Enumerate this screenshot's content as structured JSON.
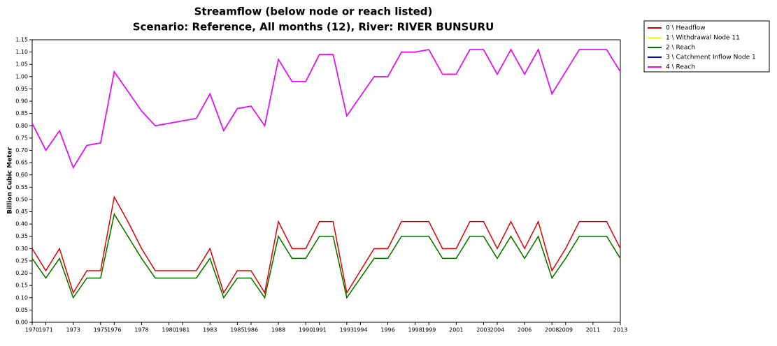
{
  "chart_data": {
    "type": "line",
    "title": "Streamflow (below node or reach listed)",
    "subtitle": "Scenario: Reference,  All months (12),  River: RIVER BUNSURU",
    "y_label": "Billion Cubic Meter",
    "x": [
      1970,
      1971,
      1972,
      1973,
      1974,
      1975,
      1976,
      1977,
      1978,
      1979,
      1980,
      1981,
      1982,
      1983,
      1984,
      1985,
      1986,
      1987,
      1988,
      1989,
      1990,
      1991,
      1992,
      1993,
      1994,
      1995,
      1996,
      1997,
      1998,
      1999,
      2000,
      2001,
      2002,
      2003,
      2004,
      2005,
      2006,
      2007,
      2008,
      2009,
      2010,
      2011,
      2012,
      2013
    ],
    "series": [
      {
        "name": "0 \\ Headflow",
        "color": "#e00000",
        "values": [
          0.3,
          0.21,
          0.3,
          0.12,
          0.21,
          0.21,
          0.51,
          0.41,
          0.3,
          0.21,
          0.21,
          0.21,
          0.21,
          0.3,
          0.12,
          0.21,
          0.21,
          0.12,
          0.41,
          0.3,
          0.3,
          0.41,
          0.41,
          0.12,
          0.21,
          0.3,
          0.3,
          0.41,
          0.41,
          0.41,
          0.3,
          0.3,
          0.41,
          0.41,
          0.3,
          0.41,
          0.3,
          0.41,
          0.21,
          0.3,
          0.41,
          0.41,
          0.41,
          0.3
        ]
      },
      {
        "name": "1 \\ Withdrawal Node 11",
        "color": "#ffff00",
        "values": [
          0.26,
          0.18,
          0.26,
          0.1,
          0.18,
          0.18,
          0.44,
          0.35,
          0.26,
          0.18,
          0.18,
          0.18,
          0.18,
          0.26,
          0.1,
          0.18,
          0.18,
          0.1,
          0.35,
          0.26,
          0.26,
          0.35,
          0.35,
          0.1,
          0.18,
          0.26,
          0.26,
          0.35,
          0.35,
          0.35,
          0.26,
          0.26,
          0.35,
          0.35,
          0.26,
          0.35,
          0.26,
          0.35,
          0.18,
          0.26,
          0.35,
          0.35,
          0.35,
          0.26
        ]
      },
      {
        "name": "2 \\ Reach",
        "color": "#007000",
        "values": [
          0.26,
          0.18,
          0.26,
          0.1,
          0.18,
          0.18,
          0.44,
          0.35,
          0.26,
          0.18,
          0.18,
          0.18,
          0.18,
          0.26,
          0.1,
          0.18,
          0.18,
          0.1,
          0.35,
          0.26,
          0.26,
          0.35,
          0.35,
          0.1,
          0.18,
          0.26,
          0.26,
          0.35,
          0.35,
          0.35,
          0.26,
          0.26,
          0.35,
          0.35,
          0.26,
          0.35,
          0.26,
          0.35,
          0.18,
          0.26,
          0.35,
          0.35,
          0.35,
          0.26
        ]
      },
      {
        "name": "3 \\ Catchment Inflow Node 1",
        "color": "#0000e0",
        "values": [
          0.81,
          0.7,
          0.78,
          0.63,
          0.72,
          0.73,
          1.02,
          0.94,
          0.86,
          0.8,
          0.81,
          0.82,
          0.83,
          0.93,
          0.78,
          0.87,
          0.88,
          0.8,
          1.07,
          0.98,
          0.98,
          1.09,
          1.09,
          0.84,
          0.92,
          1.0,
          1.0,
          1.1,
          1.1,
          1.11,
          1.01,
          1.01,
          1.11,
          1.11,
          1.01,
          1.11,
          1.01,
          1.11,
          0.93,
          1.02,
          1.11,
          1.11,
          1.11,
          1.02
        ]
      },
      {
        "name": "4 \\ Reach",
        "color": "#ff00ff",
        "values": [
          0.81,
          0.7,
          0.78,
          0.63,
          0.72,
          0.73,
          1.02,
          0.94,
          0.86,
          0.8,
          0.81,
          0.82,
          0.83,
          0.93,
          0.78,
          0.87,
          0.88,
          0.8,
          1.07,
          0.98,
          0.98,
          1.09,
          1.09,
          0.84,
          0.92,
          1.0,
          1.0,
          1.1,
          1.1,
          1.11,
          1.01,
          1.01,
          1.11,
          1.11,
          1.01,
          1.11,
          1.01,
          1.11,
          0.93,
          1.02,
          1.11,
          1.11,
          1.11,
          1.02
        ]
      }
    ],
    "xlim": [
      1970,
      2013
    ],
    "xticks": [
      1970,
      1971,
      1973,
      1975,
      1976,
      1978,
      1980,
      1981,
      1983,
      1985,
      1986,
      1988,
      1990,
      1991,
      1993,
      1994,
      1996,
      1998,
      1999,
      2001,
      2003,
      2004,
      2006,
      2008,
      2009,
      2011,
      2013
    ],
    "ylim": [
      0,
      1.15
    ],
    "yticks": [
      {
        "value": 0,
        "label": "0.00"
      },
      {
        "value": 0.05,
        "label": "0.05"
      },
      {
        "value": 0.1,
        "label": "0.10"
      },
      {
        "value": 0.15,
        "label": "0.15"
      },
      {
        "value": 0.2,
        "label": "0.20"
      },
      {
        "value": 0.25,
        "label": "0.25"
      },
      {
        "value": 0.3,
        "label": "0.30"
      },
      {
        "value": 0.35,
        "label": "0.35"
      },
      {
        "value": 0.4,
        "label": "0.40"
      },
      {
        "value": 0.45,
        "label": "0.45"
      },
      {
        "value": 0.5,
        "label": "0.50"
      },
      {
        "value": 0.55,
        "label": "0.55"
      },
      {
        "value": 0.6,
        "label": "0.60"
      },
      {
        "value": 0.65,
        "label": "0.65"
      },
      {
        "value": 0.7,
        "label": "0.70"
      },
      {
        "value": 0.75,
        "label": "0.75"
      },
      {
        "value": 0.8,
        "label": "0.80"
      },
      {
        "value": 0.85,
        "label": "0.85"
      },
      {
        "value": 0.9,
        "label": "0.90"
      },
      {
        "value": 0.95,
        "label": "0.95"
      },
      {
        "value": 1,
        "label": "1.00"
      },
      {
        "value": 1.05,
        "label": "1.05"
      },
      {
        "value": 1.1,
        "label": "1.10"
      },
      {
        "value": 1.15,
        "label": "1.15"
      }
    ],
    "legend": "top-right"
  }
}
